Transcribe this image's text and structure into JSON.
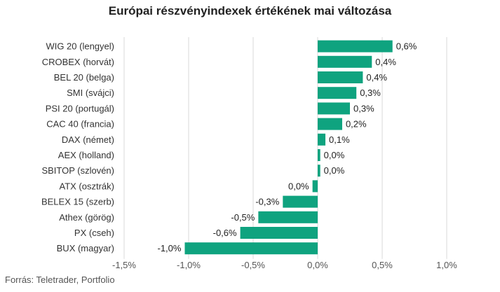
{
  "chart_data": {
    "type": "bar",
    "orientation": "horizontal",
    "title": "Európai részvényindexek értékének mai változása",
    "source": "Forrás: Teletrader, Portfolio",
    "categories": [
      "WIG 20 (lengyel)",
      "CROBEX (horvát)",
      "BEL 20 (belga)",
      "SMI (svájci)",
      "PSI 20 (portugál)",
      "CAC 40 (francia)",
      "DAX (német)",
      "AEX (holland)",
      "SBITOP (szlovén)",
      "ATX (osztrák)",
      "BELEX 15 (szerb)",
      "Athex (görög)",
      "PX (cseh)",
      "BUX (magyar)"
    ],
    "values": [
      0.58,
      0.42,
      0.35,
      0.3,
      0.25,
      0.19,
      0.06,
      0.02,
      0.02,
      -0.04,
      -0.27,
      -0.46,
      -0.6,
      -1.03
    ],
    "value_labels": [
      "0,6%",
      "0,4%",
      "0,4%",
      "0,3%",
      "0,3%",
      "0,2%",
      "0,1%",
      "0,0%",
      "0,0%",
      "0,0%",
      "-0,3%",
      "-0,5%",
      "-0,6%",
      "-1,0%"
    ],
    "xticks": [
      -1.5,
      -1.0,
      -0.5,
      0.0,
      0.5,
      1.0
    ],
    "xtick_labels": [
      "-1,5%",
      "-1,0%",
      "-0,5%",
      "0,0%",
      "0,5%",
      "1,0%"
    ],
    "xlim": [
      -1.5,
      1.0
    ],
    "grid": "vertical",
    "colors": {
      "bar": "#0fa37f",
      "grid": "#d9d9d9",
      "text": "#333333"
    }
  }
}
